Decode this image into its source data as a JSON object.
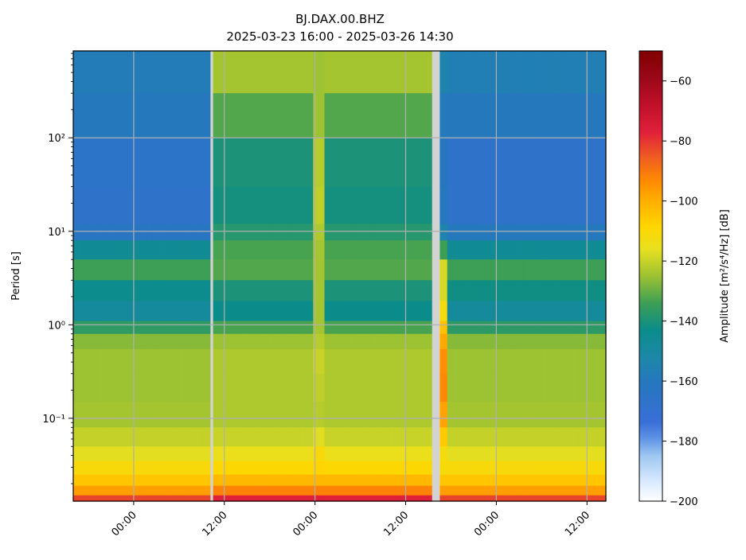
{
  "chart_data": {
    "type": "heatmap",
    "title": "BJ.DAX.00.BHZ",
    "subtitle": "2025-03-23 16:00 - 2025-03-26 14:30",
    "ylabel": "Period [s]",
    "colorbar_label": "Amplitude [m²/s⁴/Hz] [dB]",
    "x_start": "2025-03-23 16:00",
    "x_end": "2025-03-26 14:30",
    "x_ticks": [
      "00:00",
      "12:00",
      "00:00",
      "12:00",
      "00:00",
      "12:00"
    ],
    "y_scale": "log",
    "ylim": [
      0.013,
      850
    ],
    "y_ticks": [
      "10⁻¹",
      "10⁰",
      "10¹",
      "10²"
    ],
    "y_tick_values": [
      0.1,
      1,
      10,
      100
    ],
    "colorbar_range": [
      -200,
      -50
    ],
    "colorbar_ticks": [
      "−60",
      "−80",
      "−100",
      "−120",
      "−140",
      "−160",
      "−180",
      "−200"
    ],
    "colorbar_tick_values": [
      -60,
      -80,
      -100,
      -120,
      -140,
      -160,
      -180,
      -200
    ],
    "grid": true,
    "data_gaps": [
      {
        "start": "2025-03-24 10:10",
        "end": "2025-03-24 10:30"
      },
      {
        "start": "2025-03-25 15:30",
        "end": "2025-03-25 16:30"
      }
    ],
    "period_bands_s": [
      850,
      300,
      100,
      30,
      12,
      8,
      5,
      3,
      1.8,
      1.1,
      0.8,
      0.55,
      0.3,
      0.15,
      0.08,
      0.05,
      0.035,
      0.025,
      0.019,
      0.015,
      0.013
    ],
    "segments": [
      {
        "name": "segment-1",
        "start": "2025-03-23 16:00",
        "end": "2025-03-24 10:10",
        "band_values_db": [
          -158,
          -158,
          -162,
          -168,
          -164,
          -160,
          -132,
          -136,
          -152,
          -145,
          -128,
          -126,
          -124,
          -126,
          -122,
          -119,
          -114,
          -108,
          -102,
          -92,
          -72
        ]
      },
      {
        "name": "segment-2",
        "start": "2025-03-24 10:30",
        "end": "2025-03-25 15:30",
        "band_values_db": [
          -122,
          -126,
          -138,
          -142,
          -140,
          -136,
          -130,
          -134,
          -146,
          -140,
          -126,
          -124,
          -122,
          -124,
          -122,
          -118,
          -112,
          -106,
          -98,
          -86,
          -68
        ]
      },
      {
        "name": "segment-3",
        "start": "2025-03-25 16:30",
        "end": "2025-03-26 14:30",
        "band_values_db": [
          -155,
          -158,
          -162,
          -170,
          -162,
          -158,
          -134,
          -134,
          -150,
          -146,
          -128,
          -126,
          -124,
          -126,
          -122,
          -119,
          -114,
          -108,
          -102,
          -92,
          -72
        ]
      }
    ],
    "features": [
      {
        "name": "broadband-burst",
        "time": "2025-03-25 00:30",
        "band_values_db": [
          -124,
          -126,
          -124,
          -120,
          -122,
          -124,
          -124,
          -124,
          -124,
          -124,
          -124,
          -120,
          -120,
          -122,
          -122,
          -112,
          -110,
          -106,
          -98,
          -86,
          -68
        ]
      },
      {
        "name": "post-gap-strong-signal",
        "time": "2025-03-25 16:50",
        "band_values_db": [
          -150,
          -158,
          -160,
          -162,
          -158,
          -150,
          -118,
          -118,
          -118,
          -106,
          -102,
          -96,
          -92,
          -94,
          -102,
          -110,
          -114,
          -108,
          -102,
          -92,
          -72
        ]
      }
    ]
  }
}
